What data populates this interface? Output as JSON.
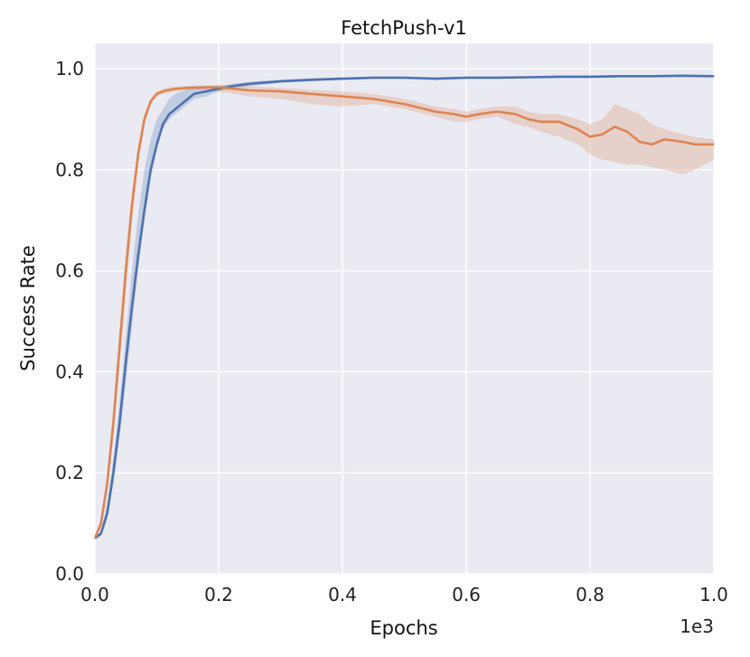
{
  "chart_data": {
    "type": "line",
    "title": "FetchPush-v1",
    "xlabel": "Epochs",
    "ylabel": "Success Rate",
    "x_scale_label": "1e3",
    "xlim": [
      0,
      1.0
    ],
    "ylim": [
      0,
      1.05
    ],
    "xticks": [
      "0.0",
      "0.2",
      "0.4",
      "0.6",
      "0.8",
      "1.0"
    ],
    "yticks": [
      "0.0",
      "0.2",
      "0.4",
      "0.6",
      "0.8",
      "1.0"
    ],
    "grid": true,
    "background": "#EAEAF2",
    "series": [
      {
        "color": "#4C72B0",
        "x": [
          0.0,
          0.01,
          0.02,
          0.03,
          0.04,
          0.05,
          0.06,
          0.07,
          0.08,
          0.09,
          0.1,
          0.11,
          0.12,
          0.13,
          0.14,
          0.15,
          0.16,
          0.18,
          0.2,
          0.22,
          0.25,
          0.3,
          0.35,
          0.4,
          0.45,
          0.5,
          0.55,
          0.6,
          0.65,
          0.7,
          0.75,
          0.8,
          0.85,
          0.9,
          0.95,
          1.0
        ],
        "y": [
          0.07,
          0.08,
          0.12,
          0.2,
          0.3,
          0.42,
          0.53,
          0.63,
          0.72,
          0.8,
          0.85,
          0.89,
          0.91,
          0.92,
          0.93,
          0.94,
          0.95,
          0.955,
          0.96,
          0.965,
          0.97,
          0.975,
          0.978,
          0.98,
          0.982,
          0.982,
          0.98,
          0.982,
          0.982,
          0.983,
          0.984,
          0.984,
          0.985,
          0.985,
          0.986,
          0.985
        ],
        "lower": [
          0.07,
          0.075,
          0.11,
          0.18,
          0.27,
          0.38,
          0.49,
          0.6,
          0.7,
          0.78,
          0.84,
          0.88,
          0.9,
          0.91,
          0.92,
          0.93,
          0.94,
          0.945,
          0.955,
          0.96,
          0.965,
          0.972,
          0.975,
          0.978,
          0.98,
          0.98,
          0.978,
          0.98,
          0.98,
          0.981,
          0.982,
          0.982,
          0.983,
          0.983,
          0.984,
          0.983
        ],
        "upper": [
          0.07,
          0.085,
          0.14,
          0.23,
          0.34,
          0.47,
          0.6,
          0.71,
          0.8,
          0.86,
          0.9,
          0.92,
          0.94,
          0.95,
          0.955,
          0.96,
          0.962,
          0.963,
          0.965,
          0.97,
          0.974,
          0.978,
          0.981,
          0.983,
          0.984,
          0.984,
          0.982,
          0.984,
          0.984,
          0.985,
          0.986,
          0.986,
          0.987,
          0.987,
          0.988,
          0.987
        ]
      },
      {
        "color": "#DD8452",
        "x": [
          0.0,
          0.01,
          0.02,
          0.03,
          0.04,
          0.05,
          0.06,
          0.07,
          0.08,
          0.09,
          0.1,
          0.11,
          0.12,
          0.13,
          0.15,
          0.18,
          0.2,
          0.25,
          0.3,
          0.35,
          0.4,
          0.45,
          0.5,
          0.55,
          0.58,
          0.6,
          0.62,
          0.65,
          0.68,
          0.7,
          0.72,
          0.75,
          0.78,
          0.8,
          0.82,
          0.84,
          0.86,
          0.88,
          0.9,
          0.92,
          0.95,
          0.97,
          1.0
        ],
        "y": [
          0.07,
          0.1,
          0.18,
          0.3,
          0.45,
          0.6,
          0.73,
          0.83,
          0.9,
          0.935,
          0.95,
          0.955,
          0.958,
          0.96,
          0.962,
          0.963,
          0.963,
          0.957,
          0.955,
          0.95,
          0.945,
          0.94,
          0.93,
          0.915,
          0.91,
          0.905,
          0.91,
          0.915,
          0.91,
          0.9,
          0.895,
          0.895,
          0.88,
          0.865,
          0.87,
          0.885,
          0.875,
          0.855,
          0.85,
          0.86,
          0.855,
          0.85,
          0.85
        ],
        "lower": [
          0.07,
          0.09,
          0.16,
          0.27,
          0.41,
          0.56,
          0.7,
          0.81,
          0.89,
          0.93,
          0.945,
          0.95,
          0.952,
          0.955,
          0.958,
          0.958,
          0.955,
          0.945,
          0.94,
          0.93,
          0.925,
          0.93,
          0.92,
          0.905,
          0.895,
          0.895,
          0.9,
          0.905,
          0.89,
          0.885,
          0.875,
          0.865,
          0.85,
          0.83,
          0.82,
          0.815,
          0.81,
          0.81,
          0.805,
          0.8,
          0.79,
          0.8,
          0.82
        ],
        "upper": [
          0.07,
          0.11,
          0.2,
          0.33,
          0.49,
          0.64,
          0.76,
          0.85,
          0.91,
          0.94,
          0.955,
          0.96,
          0.963,
          0.965,
          0.966,
          0.967,
          0.968,
          0.965,
          0.962,
          0.958,
          0.955,
          0.95,
          0.94,
          0.925,
          0.92,
          0.915,
          0.92,
          0.925,
          0.925,
          0.915,
          0.91,
          0.91,
          0.9,
          0.89,
          0.9,
          0.93,
          0.92,
          0.91,
          0.89,
          0.88,
          0.87,
          0.865,
          0.86
        ]
      }
    ]
  }
}
